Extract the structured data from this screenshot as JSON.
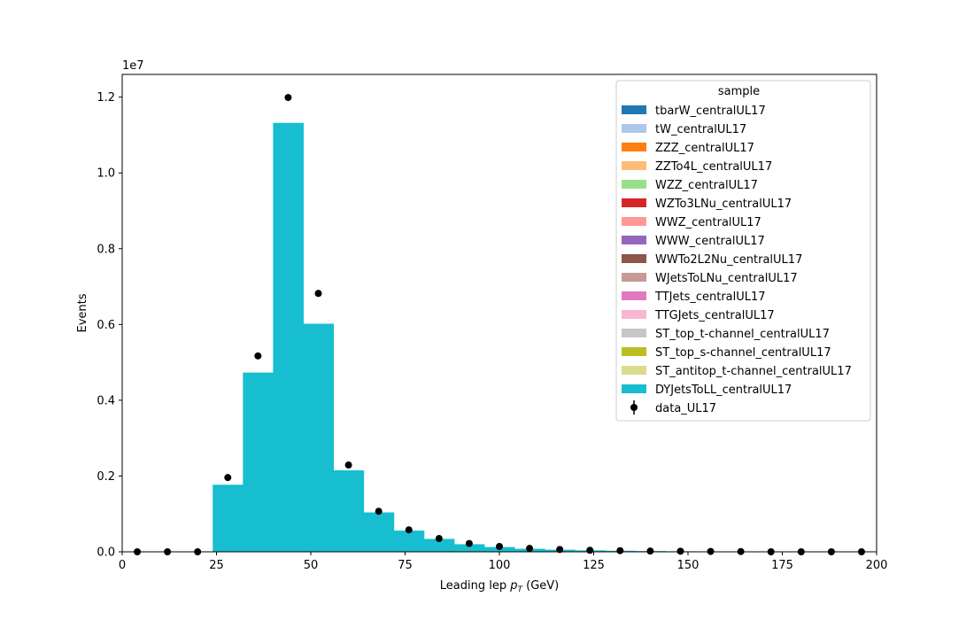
{
  "chart_data": {
    "type": "bar",
    "xlabel": "Leading lep",
    "xlabel_symbol": "p",
    "xlabel_subscript": "T",
    "xlabel_unit": " (GeV)",
    "ylabel": "Events",
    "y_multiplier": "1e7",
    "xlim": [
      0,
      200
    ],
    "ylim": [
      0,
      12600000
    ],
    "x_ticks": [
      0,
      25,
      50,
      75,
      100,
      125,
      150,
      175,
      200
    ],
    "y_ticks": [
      0,
      2000000,
      4000000,
      6000000,
      8000000,
      10000000,
      12000000
    ],
    "y_tick_labels": [
      "0.0",
      "0.2",
      "0.4",
      "0.6",
      "0.8",
      "1.0",
      "1.2"
    ],
    "grid": false,
    "legend": {
      "title": "sample",
      "placement": "top-right",
      "entries": [
        {
          "label": "tbarW_centralUL17",
          "color": "#1f77b4"
        },
        {
          "label": "tW_centralUL17",
          "color": "#aec7e8"
        },
        {
          "label": "ZZZ_centralUL17",
          "color": "#ff7f0e"
        },
        {
          "label": "ZZTo4L_centralUL17",
          "color": "#ffbb78"
        },
        {
          "label": "WZZ_centralUL17",
          "color": "#98df8a"
        },
        {
          "label": "WZTo3LNu_centralUL17",
          "color": "#d62728"
        },
        {
          "label": "WWZ_centralUL17",
          "color": "#ff9896"
        },
        {
          "label": "WWW_centralUL17",
          "color": "#9467bd"
        },
        {
          "label": "WWTo2L2Nu_centralUL17",
          "color": "#8c564b"
        },
        {
          "label": "WJetsToLNu_centralUL17",
          "color": "#c49c94"
        },
        {
          "label": "TTJets_centralUL17",
          "color": "#e377c2"
        },
        {
          "label": "TTGJets_centralUL17",
          "color": "#f7b6d2"
        },
        {
          "label": "ST_top_t-channel_centralUL17",
          "color": "#c7c7c7"
        },
        {
          "label": "ST_top_s-channel_centralUL17",
          "color": "#bcbd22"
        },
        {
          "label": "ST_antitop_t-channel_centralUL17",
          "color": "#dbdb8d"
        },
        {
          "label": "DYJetsToLL_centralUL17",
          "color": "#17becf"
        }
      ],
      "data_label": "data_UL17"
    },
    "bin_edges": [
      0,
      8,
      16,
      24,
      32,
      40,
      48,
      56,
      64,
      72,
      80,
      88,
      96,
      104,
      112,
      120,
      128,
      136,
      144,
      152,
      160,
      168,
      176,
      184,
      192,
      200
    ],
    "series": [
      {
        "name": "DYJetsToLL_centralUL17",
        "color": "#17becf",
        "values": [
          0,
          0,
          0,
          1770000,
          4730000,
          11320000,
          6020000,
          2150000,
          1040000,
          560000,
          340000,
          200000,
          125000,
          80000,
          55000,
          38000,
          27000,
          19000,
          13000,
          9000,
          6000,
          4000,
          0,
          0,
          0
        ]
      },
      {
        "name": "data_UL17",
        "type": "scatter",
        "color": "#000000",
        "x": [
          4,
          12,
          20,
          28,
          36,
          44,
          52,
          60,
          68,
          76,
          84,
          92,
          100,
          108,
          116,
          124,
          132,
          140,
          148,
          156,
          164,
          172,
          180,
          188,
          196
        ],
        "values": [
          0,
          0,
          0,
          1960000,
          5170000,
          11990000,
          6820000,
          2290000,
          1070000,
          580000,
          350000,
          220000,
          140000,
          90000,
          60000,
          40000,
          30000,
          20000,
          15000,
          10000,
          7000,
          0,
          0,
          0,
          0
        ]
      }
    ]
  }
}
